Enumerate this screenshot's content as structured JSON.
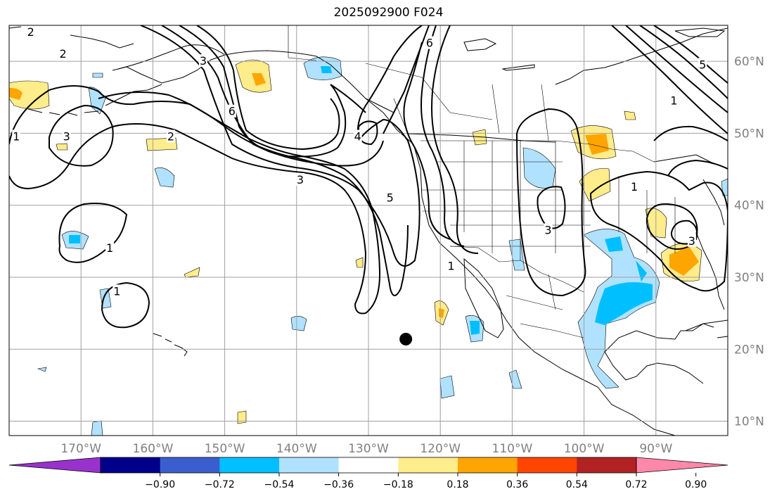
{
  "title": "2025092900 F024",
  "map": {
    "lon_range": [
      -180,
      -80
    ],
    "lat_range": [
      8,
      65
    ],
    "lon_ticks": [
      {
        "value": -170,
        "label": "170°W"
      },
      {
        "value": -160,
        "label": "160°W"
      },
      {
        "value": -150,
        "label": "150°W"
      },
      {
        "value": -140,
        "label": "140°W"
      },
      {
        "value": -130,
        "label": "130°W"
      },
      {
        "value": -120,
        "label": "120°W"
      },
      {
        "value": -110,
        "label": "110°W"
      },
      {
        "value": -100,
        "label": "100°W"
      },
      {
        "value": -90,
        "label": "90°W"
      }
    ],
    "lat_ticks": [
      {
        "value": 60,
        "label": "60°N"
      },
      {
        "value": 50,
        "label": "50°N"
      },
      {
        "value": 40,
        "label": "40°N"
      },
      {
        "value": 30,
        "label": "30°N"
      },
      {
        "value": 20,
        "label": "20°N"
      },
      {
        "value": 10,
        "label": "10°N"
      }
    ],
    "grid": true,
    "marker": {
      "lon": -124.8,
      "lat": 21.4,
      "color": "#000000"
    },
    "contour_labels": [
      {
        "text": "2",
        "lon": -177,
        "lat": 64
      },
      {
        "text": "2",
        "lon": -172.5,
        "lat": 61
      },
      {
        "text": "1",
        "lon": -179,
        "lat": 49.5
      },
      {
        "text": "3",
        "lon": -172,
        "lat": 49.5
      },
      {
        "text": "2",
        "lon": -157.5,
        "lat": 49.5
      },
      {
        "text": "3",
        "lon": -153,
        "lat": 60
      },
      {
        "text": "6",
        "lon": -149,
        "lat": 53
      },
      {
        "text": "3",
        "lon": -139.5,
        "lat": 43.5
      },
      {
        "text": "4",
        "lon": -131.5,
        "lat": 49.5
      },
      {
        "text": "5",
        "lon": -127,
        "lat": 41
      },
      {
        "text": "6",
        "lon": -121.5,
        "lat": 62.5
      },
      {
        "text": "1",
        "lon": -118.5,
        "lat": 31.5
      },
      {
        "text": "1",
        "lon": -166,
        "lat": 34
      },
      {
        "text": "1",
        "lon": -165,
        "lat": 28
      },
      {
        "text": "3",
        "lon": -105,
        "lat": 36.5
      },
      {
        "text": "1",
        "lon": -93,
        "lat": 42.5
      },
      {
        "text": "3",
        "lon": -85,
        "lat": 35
      },
      {
        "text": "5",
        "lon": -83.5,
        "lat": 59.5
      },
      {
        "text": "1",
        "lon": -87.5,
        "lat": 54.5
      }
    ],
    "colors": {
      "ocean": "#ffffff",
      "coastline": "#000000",
      "grid": "#a0a0a0",
      "contour": "#000000"
    }
  },
  "colorbar": {
    "colors": [
      "#9932cc",
      "#00008b",
      "#3a5fcd",
      "#00bfff",
      "#b0e2ff",
      "#ffffff",
      "#ffec8b",
      "#ffa500",
      "#ff4500",
      "#b22222",
      "#ff88aa"
    ],
    "ticks": [
      {
        "value": -0.9,
        "label": "−0.90"
      },
      {
        "value": -0.72,
        "label": "−0.72"
      },
      {
        "value": -0.54,
        "label": "−0.54"
      },
      {
        "value": -0.36,
        "label": "−0.36"
      },
      {
        "value": -0.18,
        "label": "−0.18"
      },
      {
        "value": 0.18,
        "label": "0.18"
      },
      {
        "value": 0.36,
        "label": "0.36"
      },
      {
        "value": 0.54,
        "label": "0.54"
      },
      {
        "value": 0.72,
        "label": "0.72"
      },
      {
        "value": 0.9,
        "label": "0.90"
      }
    ],
    "extend": "both"
  }
}
